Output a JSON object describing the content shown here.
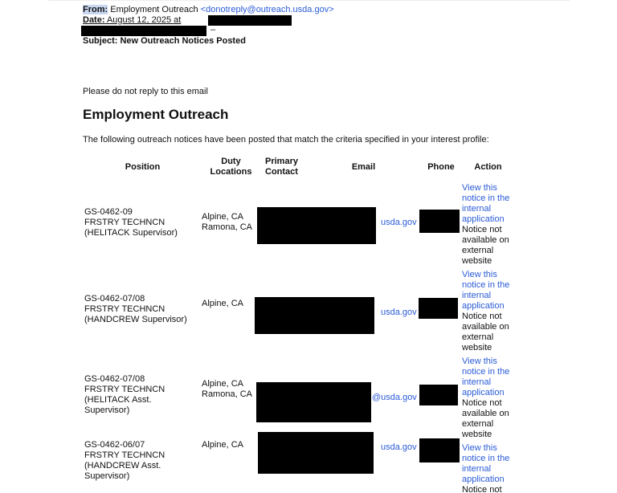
{
  "header": {
    "from_label": "From:",
    "from_name": "Employment Outreach",
    "from_email": "<donotreply@outreach.usda.gov>",
    "date_label": "Date:",
    "date_value": "August 12, 2025 at",
    "date_dash": "–",
    "subject": "Subject: New Outreach Notices Posted"
  },
  "notice": "Please do not reply to this email",
  "title": "Employment Outreach",
  "intro": "The following outreach notices have been posted that match the criteria specified in your interest profile:",
  "columns": {
    "position": "Position",
    "duty": "Duty Locations",
    "contact": "Primary Contact",
    "email": "Email",
    "phone": "Phone",
    "action": "Action"
  },
  "rows": [
    {
      "grade": "GS-0462-09",
      "title": "FRSTRY TECHNCN",
      "sub": "(HELITACK Supervisor)",
      "loc1": "Alpine, CA",
      "loc2": "Ramona, CA",
      "email": "usda.gov",
      "link": "View this notice in the internal application",
      "note": "Notice not available on external website"
    },
    {
      "grade": "GS-0462-07/08",
      "title": "FRSTRY TECHNCN",
      "sub": "(HANDCREW Supervisor)",
      "loc1": "Alpine, CA",
      "loc2": "",
      "email": "usda.gov",
      "link": "View this notice in the internal application",
      "note": "Notice not available on external website"
    },
    {
      "grade": "GS-0462-07/08",
      "title": "FRSTRY TECHNCN",
      "sub": "(HELITACK Asst. Supervisor)",
      "loc1": "Alpine, CA",
      "loc2": "Ramona, CA",
      "email": "@usda.gov",
      "link": "View this notice in the internal application",
      "note": "Notice not available on external website"
    },
    {
      "grade": "GS-0462-06/07",
      "title": "FRSTRY TECHNCN",
      "sub": "(HANDCREW Asst. Supervisor)",
      "loc1": "Alpine, CA",
      "loc2": "",
      "email": "usda.gov",
      "link": "View this notice in the internal application",
      "note": "Notice not"
    }
  ]
}
